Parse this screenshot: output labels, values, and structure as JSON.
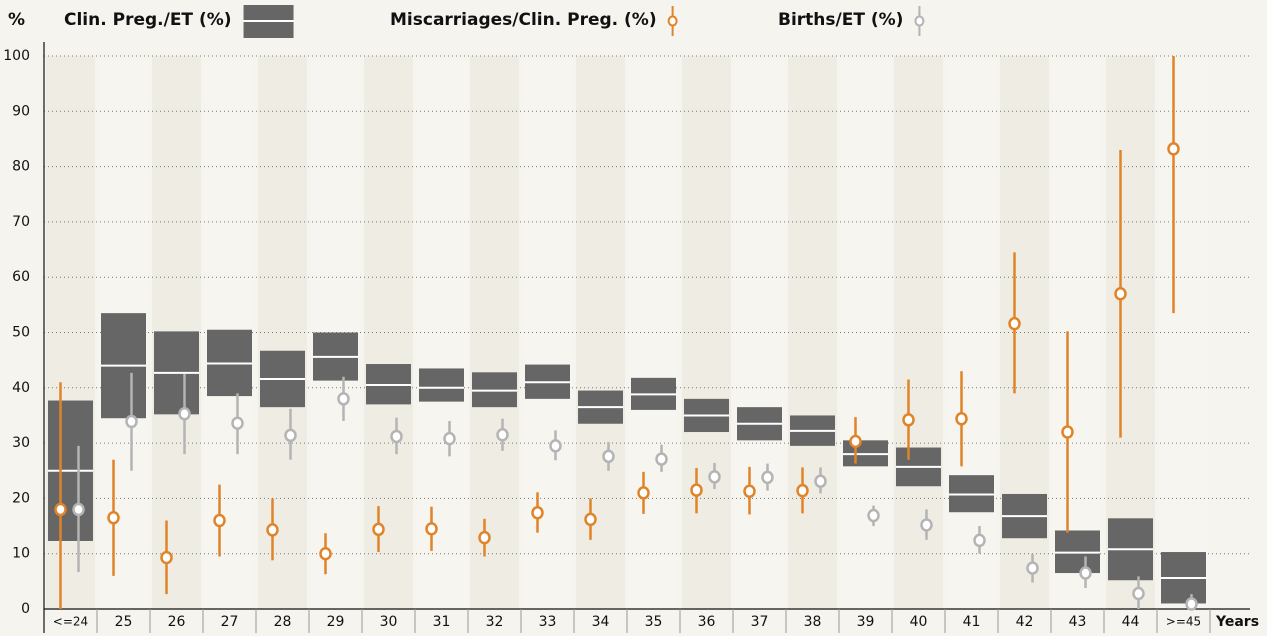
{
  "chart_data": {
    "type": "interval",
    "y_label": "%",
    "x_label": "Years",
    "categories": [
      "<=24",
      "25",
      "26",
      "27",
      "28",
      "29",
      "30",
      "31",
      "32",
      "33",
      "34",
      "35",
      "36",
      "37",
      "38",
      "39",
      "40",
      "41",
      "42",
      "43",
      "44",
      ">=45"
    ],
    "ylim": [
      0,
      100
    ],
    "yticks": [
      0,
      10,
      20,
      30,
      40,
      50,
      60,
      70,
      80,
      90,
      100
    ],
    "grid": true,
    "series": [
      {
        "name": "Clin. Preg./ET (%)",
        "style": "box",
        "color": "#666666",
        "values": [
          25,
          44,
          42.7,
          44.4,
          41.6,
          45.6,
          40.5,
          40,
          39.5,
          41,
          36.5,
          38.8,
          35,
          33.5,
          32.2,
          28,
          25.7,
          20.7,
          16.8,
          10.2,
          10.8,
          5.6
        ],
        "lower": [
          12.3,
          34.5,
          35.2,
          38.5,
          36.5,
          41.3,
          37,
          37.5,
          36.5,
          38,
          33.5,
          36,
          32,
          30.5,
          29.5,
          25.8,
          22.2,
          17.5,
          12.8,
          6.5,
          5.2,
          1
        ],
        "upper": [
          37.7,
          53.5,
          50.2,
          50.5,
          46.7,
          50,
          44.3,
          43.5,
          42.8,
          44.2,
          39.5,
          41.8,
          38,
          36.5,
          35,
          30.5,
          29.2,
          24.2,
          20.8,
          14.2,
          16.4,
          10.3
        ]
      },
      {
        "name": "Miscarriages/Clin. Preg. (%)",
        "style": "point",
        "color": "#e0842a",
        "values": [
          18,
          16.5,
          9.3,
          16,
          14.3,
          10,
          14.4,
          14.5,
          12.9,
          17.4,
          16.2,
          21,
          21.5,
          21.3,
          21.4,
          30.3,
          34.2,
          34.4,
          51.6,
          32,
          57,
          83.2
        ],
        "lower": [
          0,
          6,
          2.7,
          9.5,
          8.8,
          6.3,
          10.3,
          10.5,
          9.5,
          13.8,
          12.5,
          17.2,
          17.3,
          17.1,
          17.3,
          26.3,
          27,
          25.8,
          39,
          13.8,
          31,
          53.5
        ],
        "upper": [
          41,
          27,
          16,
          22.5,
          20,
          13.7,
          18.6,
          18.5,
          16.3,
          21.1,
          20,
          24.8,
          25.5,
          25.7,
          25.6,
          34.7,
          41.5,
          43,
          64.5,
          50.2,
          83,
          100
        ]
      },
      {
        "name": "Births/ET (%)",
        "style": "point",
        "color": "#b4b4b4",
        "values": [
          18,
          33.9,
          35.3,
          33.6,
          31.4,
          38,
          31.2,
          30.8,
          31.5,
          29.5,
          27.6,
          27.1,
          23.9,
          23.8,
          23.1,
          16.9,
          15.2,
          12.4,
          7.4,
          6.5,
          2.8,
          0.9
        ],
        "lower": [
          6.7,
          25,
          28,
          28,
          27,
          34,
          28,
          27.6,
          28.6,
          26.9,
          25,
          24.8,
          21.7,
          21.4,
          20.9,
          15,
          12.5,
          10,
          4.8,
          3.8,
          0,
          0
        ],
        "upper": [
          29.5,
          42.7,
          42.5,
          39,
          36.2,
          42,
          34.6,
          34,
          34.4,
          32.3,
          30.2,
          29.7,
          26.4,
          26.3,
          25.6,
          18.7,
          18,
          15,
          10,
          9.5,
          5.9,
          2.7
        ]
      }
    ]
  }
}
